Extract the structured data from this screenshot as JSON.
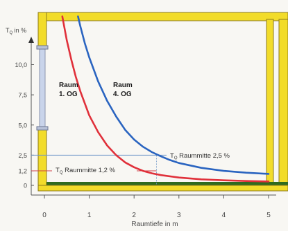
{
  "chart_data": {
    "type": "line",
    "ylabel": "T",
    "ylabel_sub": "Q",
    "ylabel_unit": " in %",
    "xlabel": "Raumtiefe in m",
    "xlim": [
      0,
      5.2
    ],
    "ylim": [
      0,
      14
    ],
    "x_ticks": [
      0,
      1,
      2,
      3,
      4,
      5
    ],
    "y_ticks": [
      0,
      1.2,
      2.5,
      5.0,
      7.5,
      10.0
    ],
    "y_tick_labels": [
      "0",
      "1,2",
      "2,5",
      "5,0",
      "7,5",
      "10,0"
    ],
    "series": [
      {
        "name": "Raum 1. OG",
        "label_line1": "Raum",
        "label_line2": "1. OG",
        "color": "#e0303a",
        "x": [
          0.4,
          0.5,
          0.6,
          0.7,
          0.8,
          1.0,
          1.2,
          1.4,
          1.6,
          1.8,
          2.0,
          2.2,
          2.4,
          2.6,
          3.0,
          3.5,
          4.0,
          4.5,
          5.0
        ],
        "y": [
          14.0,
          12.0,
          10.4,
          9.0,
          7.8,
          5.8,
          4.4,
          3.3,
          2.5,
          1.9,
          1.5,
          1.2,
          1.0,
          0.85,
          0.65,
          0.5,
          0.42,
          0.36,
          0.32
        ]
      },
      {
        "name": "Raum 4. OG",
        "label_line1": "Raum",
        "label_line2": "4. OG",
        "color": "#2a64c0",
        "x": [
          0.75,
          0.8,
          0.9,
          1.0,
          1.2,
          1.4,
          1.6,
          1.8,
          2.0,
          2.2,
          2.4,
          2.6,
          2.8,
          3.0,
          3.5,
          4.0,
          4.5,
          5.0
        ],
        "y": [
          14.0,
          13.2,
          11.8,
          10.6,
          8.6,
          7.0,
          5.7,
          4.6,
          3.8,
          3.2,
          2.75,
          2.4,
          2.1,
          1.85,
          1.45,
          1.2,
          1.05,
          0.95
        ]
      }
    ],
    "annotations": [
      {
        "prefix": "T",
        "sub": "Q",
        "text": " Raummitte 2,5 %",
        "x": 2.5,
        "y": 2.5
      },
      {
        "prefix": "T",
        "sub": "Q",
        "text": " Raummitte 1,2 %",
        "x": 2.5,
        "y": 1.2
      }
    ],
    "colors": {
      "frame": "#f2dc2a",
      "frame_edge": "#8c7a1c",
      "floor": "#2f6b1f",
      "window": "#c9d4ea",
      "axis": "#555555",
      "reference": "#6f97c8"
    }
  }
}
